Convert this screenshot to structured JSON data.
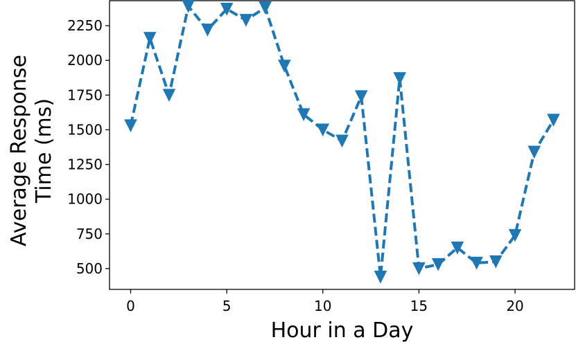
{
  "chart_data": {
    "type": "line",
    "xlabel": "Hour in a Day",
    "ylabel_lines": [
      "Average Response",
      "Time (ms)"
    ],
    "xlim": [
      -1.1,
      23.1
    ],
    "ylim": [
      350,
      2430
    ],
    "xticks": [
      0,
      5,
      10,
      15,
      20
    ],
    "yticks": [
      500,
      750,
      1000,
      1250,
      1500,
      1750,
      2000,
      2250
    ],
    "grid": false,
    "marker": "triangle-down",
    "line_style": "dashed",
    "color": "#1f77b4",
    "series": [
      {
        "x": [
          0,
          1,
          2,
          3,
          4,
          5,
          6,
          7,
          8,
          9,
          10,
          11,
          12,
          13,
          14,
          15,
          16,
          17,
          18,
          19,
          20,
          21,
          22
        ],
        "values": [
          1530,
          2160,
          1750,
          2390,
          2220,
          2370,
          2290,
          2380,
          1960,
          1610,
          1500,
          1420,
          1740,
          440,
          1870,
          500,
          530,
          650,
          540,
          550,
          740,
          1340,
          1570
        ]
      }
    ]
  }
}
